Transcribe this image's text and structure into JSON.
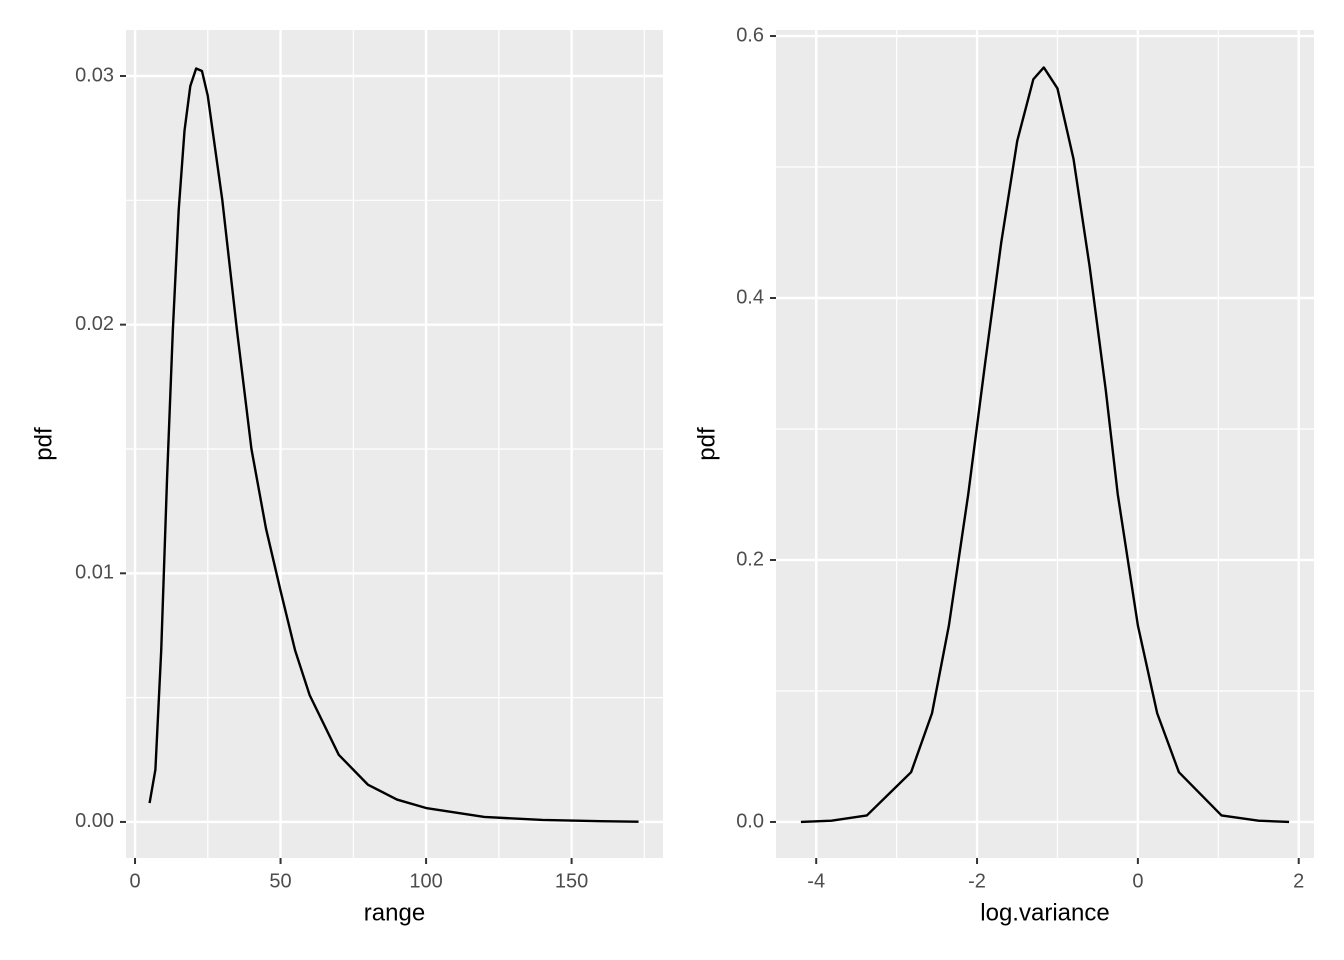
{
  "chart_data": [
    {
      "type": "line",
      "x_label": "range",
      "y_label": "pdf",
      "x": [
        5,
        7,
        9,
        11,
        13,
        15,
        17,
        19,
        21,
        23,
        25,
        30,
        35,
        40,
        45,
        50,
        55,
        60,
        70,
        80,
        90,
        100,
        120,
        140,
        160,
        173
      ],
      "series": [
        {
          "name": "pdf",
          "color": "#000000",
          "values": [
            0.00076,
            0.0021,
            0.0069,
            0.0138,
            0.0198,
            0.0246,
            0.0278,
            0.0296,
            0.0303,
            0.0302,
            0.0292,
            0.025,
            0.0198,
            0.015,
            0.0118,
            0.0093,
            0.0069,
            0.0051,
            0.0027,
            0.0015,
            0.0009,
            0.00056,
            0.0002,
            8e-05,
            3e-05,
            1e-05
          ]
        }
      ],
      "xlim": [
        -3.1,
        181.4
      ],
      "ylim": [
        -0.00145,
        0.03185
      ],
      "xticks": [
        0,
        50,
        100,
        150
      ],
      "xminor": [
        25,
        75,
        125,
        175
      ],
      "yticks": [
        {
          "value": 0,
          "label": "0.00"
        },
        {
          "value": 0.01,
          "label": "0.01"
        },
        {
          "value": 0.02,
          "label": "0.02"
        },
        {
          "value": 0.03,
          "label": "0.03"
        }
      ],
      "yminor": [
        0.005,
        0.015,
        0.025
      ],
      "grid": true
    },
    {
      "type": "line",
      "x_label": "log.variance",
      "y_label": "pdf",
      "x": [
        -4.19,
        -3.81,
        -3.37,
        -2.82,
        -2.56,
        -2.35,
        -2.11,
        -1.9,
        -1.7,
        -1.5,
        -1.3,
        -1.17,
        -1.0,
        -0.8,
        -0.6,
        -0.4,
        -0.25,
        0,
        0.24,
        0.51,
        1.04,
        1.5,
        1.88
      ],
      "series": [
        {
          "name": "pdf",
          "color": "#000000",
          "values": [
            0.0,
            0.001,
            0.005,
            0.038,
            0.083,
            0.15,
            0.25,
            0.35,
            0.442,
            0.52,
            0.567,
            0.576,
            0.56,
            0.506,
            0.424,
            0.33,
            0.25,
            0.15,
            0.083,
            0.038,
            0.005,
            0.001,
            0.0
          ]
        }
      ],
      "xlim": [
        -4.5,
        2.19
      ],
      "ylim": [
        -0.0275,
        0.6046
      ],
      "xticks": [
        -4,
        -2,
        0,
        2
      ],
      "xminor": [
        -3,
        -1,
        1
      ],
      "yticks": [
        {
          "value": 0,
          "label": "0.0"
        },
        {
          "value": 0.2,
          "label": "0.2"
        },
        {
          "value": 0.4,
          "label": "0.4"
        },
        {
          "value": 0.6,
          "label": "0.6"
        }
      ],
      "yminor": [
        0.1,
        0.3,
        0.5
      ],
      "grid": true
    }
  ]
}
